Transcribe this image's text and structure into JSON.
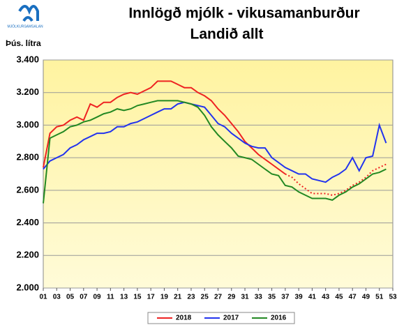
{
  "chart_data": {
    "type": "line",
    "logo_text": "MJÓLKURSAMSALAN",
    "title": "Innlögð mjólk - vikusamanburður",
    "subtitle": "Landið allt",
    "ylabel": "Þús. lítra",
    "x": [
      1,
      2,
      3,
      4,
      5,
      6,
      7,
      8,
      9,
      10,
      11,
      12,
      13,
      14,
      15,
      16,
      17,
      18,
      19,
      20,
      21,
      22,
      23,
      24,
      25,
      26,
      27,
      28,
      29,
      30,
      31,
      32,
      33,
      34,
      35,
      36,
      37,
      38,
      39,
      40,
      41,
      42,
      43,
      44,
      45,
      46,
      47,
      48,
      49,
      50,
      51,
      52
    ],
    "xlim": [
      1,
      53
    ],
    "xticks": [
      {
        "value": 1,
        "label": "01"
      },
      {
        "value": 3,
        "label": "03"
      },
      {
        "value": 5,
        "label": "05"
      },
      {
        "value": 7,
        "label": "07"
      },
      {
        "value": 9,
        "label": "09"
      },
      11,
      13,
      15,
      17,
      19,
      21,
      23,
      25,
      27,
      29,
      31,
      33,
      35,
      37,
      39,
      41,
      43,
      45,
      47,
      49,
      51,
      53
    ],
    "ylim": [
      2000,
      3400
    ],
    "yticks": [
      {
        "value": 2000,
        "label": "2.000"
      },
      {
        "value": 2200,
        "label": "2.200"
      },
      {
        "value": 2400,
        "label": "2.400"
      },
      {
        "value": 2600,
        "label": "2.600"
      },
      {
        "value": 2800,
        "label": "2.800"
      },
      {
        "value": 3000,
        "label": "3.000"
      },
      {
        "value": 3200,
        "label": "3.200"
      },
      {
        "value": 3400,
        "label": "3.400"
      }
    ],
    "grid": true,
    "legend": "bottom",
    "series": [
      {
        "name": "2018",
        "color": "#ee2222",
        "dotted_from_x": 37,
        "values": [
          2740,
          2950,
          2990,
          3000,
          3030,
          3050,
          3030,
          3130,
          3110,
          3140,
          3140,
          3170,
          3190,
          3200,
          3190,
          3210,
          3230,
          3270,
          3270,
          3270,
          3250,
          3230,
          3230,
          3200,
          3180,
          3150,
          3100,
          3060,
          3010,
          2960,
          2900,
          2860,
          2820,
          2790,
          2760,
          2730,
          2700,
          2680,
          2640,
          2610,
          2580,
          2580,
          2580,
          2570,
          2580,
          2600,
          2630,
          2650,
          2680,
          2720,
          2740,
          2760
        ]
      },
      {
        "name": "2017",
        "color": "#2233ee",
        "values": [
          2730,
          2780,
          2800,
          2820,
          2860,
          2880,
          2910,
          2930,
          2950,
          2950,
          2960,
          2990,
          2990,
          3010,
          3020,
          3040,
          3060,
          3080,
          3100,
          3100,
          3130,
          3140,
          3130,
          3120,
          3110,
          3060,
          3010,
          2990,
          2950,
          2920,
          2890,
          2870,
          2860,
          2860,
          2800,
          2770,
          2740,
          2720,
          2700,
          2700,
          2670,
          2660,
          2650,
          2680,
          2700,
          2730,
          2800,
          2720,
          2800,
          2810,
          3000,
          2890
        ]
      },
      {
        "name": "2016",
        "color": "#228822",
        "values": [
          2520,
          2920,
          2940,
          2960,
          2990,
          3000,
          3020,
          3030,
          3050,
          3070,
          3080,
          3100,
          3090,
          3100,
          3120,
          3130,
          3140,
          3150,
          3150,
          3150,
          3150,
          3140,
          3130,
          3110,
          3060,
          2990,
          2940,
          2900,
          2860,
          2810,
          2800,
          2790,
          2760,
          2730,
          2700,
          2690,
          2630,
          2620,
          2590,
          2570,
          2550,
          2550,
          2550,
          2540,
          2570,
          2590,
          2620,
          2640,
          2670,
          2700,
          2710,
          2730
        ]
      }
    ]
  }
}
